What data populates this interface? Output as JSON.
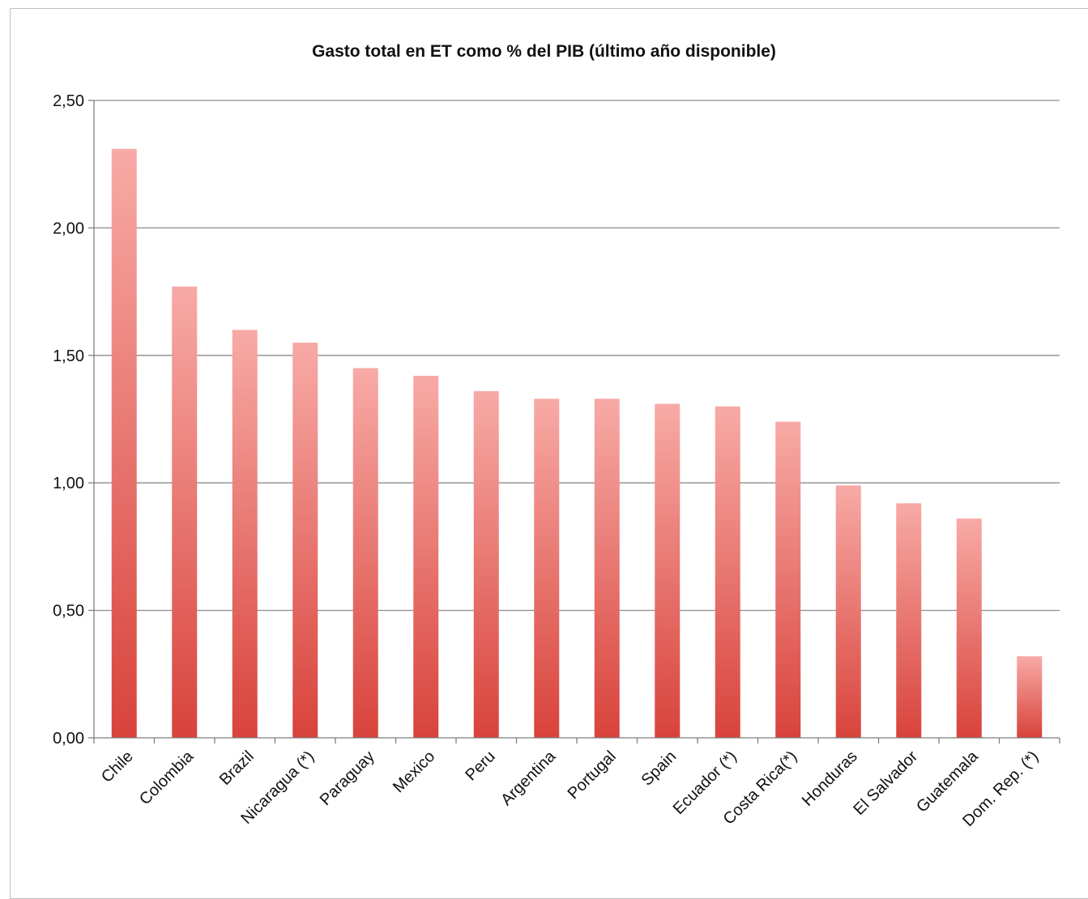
{
  "chart_data": {
    "type": "bar",
    "title": "Gasto total en ET como % del PIB (último año disponible)",
    "xlabel": "",
    "ylabel": "",
    "categories": [
      "Chile",
      "Colombia",
      "Brazil",
      "Nicaragua (*)",
      "Paraguay",
      "Mexico",
      "Peru",
      "Argentina",
      "Portugal",
      "Spain",
      "Ecuador (*)",
      "Costa Rica(*)",
      "Honduras",
      "El Salvador",
      "Guatemala",
      "Dom. Rep. (*)"
    ],
    "values": [
      2.31,
      1.77,
      1.6,
      1.55,
      1.45,
      1.42,
      1.36,
      1.33,
      1.33,
      1.31,
      1.3,
      1.24,
      0.99,
      0.92,
      0.86,
      0.32
    ],
    "ylim": [
      0,
      2.5
    ],
    "yticks": [
      "0,00",
      "0,50",
      "1,00",
      "1,50",
      "2,00",
      "2,50"
    ],
    "grid": true,
    "legend": "none",
    "colors": {
      "bar_top": "#f8aaa6",
      "bar_bottom": "#d8433b",
      "grid": "#8c8c8c",
      "axis": "#7f7f7f"
    }
  }
}
